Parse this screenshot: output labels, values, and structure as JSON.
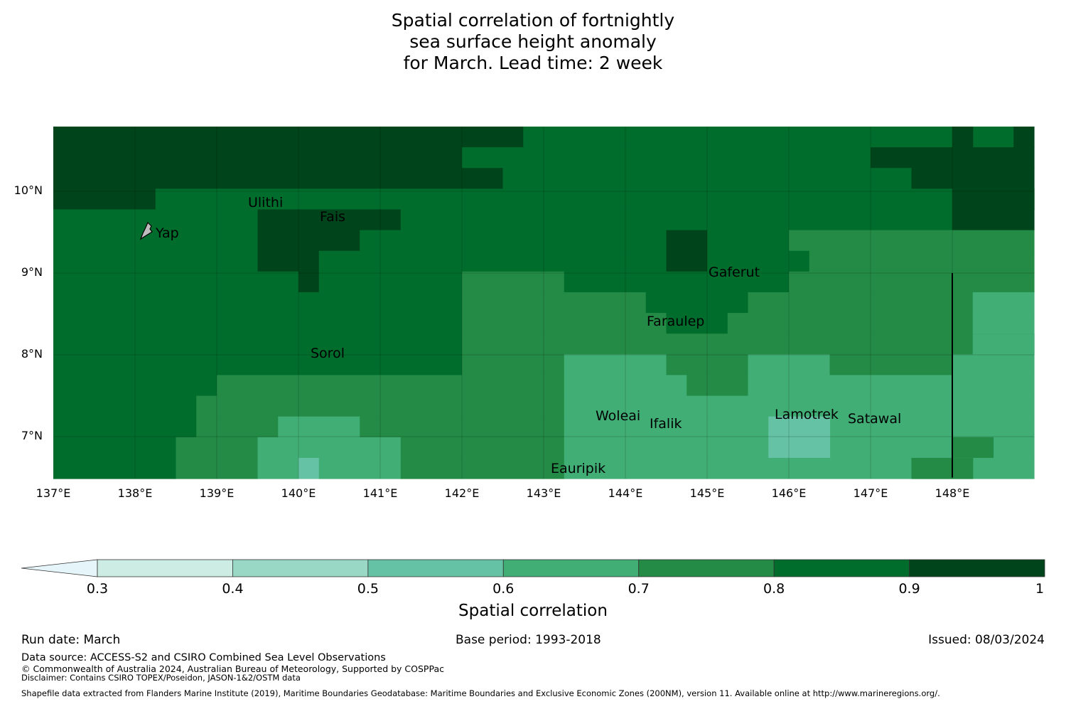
{
  "title": {
    "line1": "Spatial correlation of fortnightly",
    "line2": "sea surface height anomaly",
    "line3": "for March. Lead time: 2 week"
  },
  "map": {
    "lon_range": [
      137.0,
      149.0
    ],
    "lat_range": [
      6.5,
      10.8
    ],
    "x_ticks": [
      "137°E",
      "138°E",
      "139°E",
      "140°E",
      "141°E",
      "142°E",
      "143°E",
      "144°E",
      "145°E",
      "146°E",
      "147°E",
      "148°E"
    ],
    "y_ticks": [
      "10°N",
      "9°N",
      "8°N",
      "7°N"
    ],
    "places": [
      {
        "name": "Ulithi",
        "lon": 139.75,
        "lat": 9.95
      },
      {
        "name": "Fais",
        "lon": 140.45,
        "lat": 9.75
      },
      {
        "name": "Yap",
        "lon": 138.4,
        "lat": 9.52
      },
      {
        "name": "Gaferut",
        "lon": 145.35,
        "lat": 9.1
      },
      {
        "name": "Faraulep",
        "lon": 144.5,
        "lat": 8.55
      },
      {
        "name": "Sorol",
        "lon": 140.35,
        "lat": 8.1
      },
      {
        "name": "Woleai",
        "lon": 143.9,
        "lat": 7.35
      },
      {
        "name": "Ifalik",
        "lon": 144.45,
        "lat": 7.2
      },
      {
        "name": "Lamotrek",
        "lon": 146.25,
        "lat": 7.37
      },
      {
        "name": "Satawal",
        "lon": 147.05,
        "lat": 7.3
      },
      {
        "name": "Eauripik",
        "lon": 143.45,
        "lat": 6.65
      }
    ],
    "boundary_line": {
      "lon": 148.0,
      "lat_from": 9.0,
      "lat_to": 6.5
    },
    "correlation_field": {
      "lat_rows_north_to_south": [
        10.8,
        10.5,
        10.25,
        10.0,
        9.75,
        9.5,
        9.25,
        9.0,
        8.75,
        8.5,
        8.25,
        8.0,
        7.75,
        7.5,
        7.25,
        7.0,
        6.75
      ],
      "summary": "values 0.9-1.0 across the north (137-142.5E above ~10N), 0.8-0.9 over most of the western half, 0.7-0.8 and 0.6-0.7 in the south and east, with small pockets of 0.5-0.6"
    }
  },
  "colorbar": {
    "label": "Spatial correlation",
    "ticks": [
      "0.3",
      "0.4",
      "0.5",
      "0.6",
      "0.7",
      "0.8",
      "0.9",
      "1"
    ],
    "bins": [
      {
        "from": 0.3,
        "to": 0.4,
        "color": "#cdece3"
      },
      {
        "from": 0.4,
        "to": 0.5,
        "color": "#99d8c5"
      },
      {
        "from": 0.5,
        "to": 0.6,
        "color": "#66c2a4"
      },
      {
        "from": 0.6,
        "to": 0.7,
        "color": "#41ae76"
      },
      {
        "from": 0.7,
        "to": 0.8,
        "color": "#238b45"
      },
      {
        "from": 0.8,
        "to": 0.9,
        "color": "#006d2c"
      },
      {
        "from": 0.9,
        "to": 1.0,
        "color": "#00441b"
      }
    ],
    "under_color": "#e5f5f9"
  },
  "footer": {
    "run_date": "Run date: March",
    "base_period": "Base period: 1993-2018",
    "issued": "Issued: 08/03/2024",
    "data_source": "Data source: ACCESS-S2 and CSIRO Combined Sea Level Observations",
    "copyright": "© Commonwealth of Australia 2024, Australian Bureau of Meteorology, Supported by COSPPac",
    "disclaimer": "Disclaimer: Contains CSIRO TOPEX/Poseidon, JASON-1&2/OSTM data",
    "shapefile": "Shapefile data extracted from Flanders Marine Institute (2019), Maritime Boundaries Geodatabase: Maritime Boundaries and Exclusive Economic Zones (200NM), version 11. Available online at http://www.marineregions.org/."
  }
}
